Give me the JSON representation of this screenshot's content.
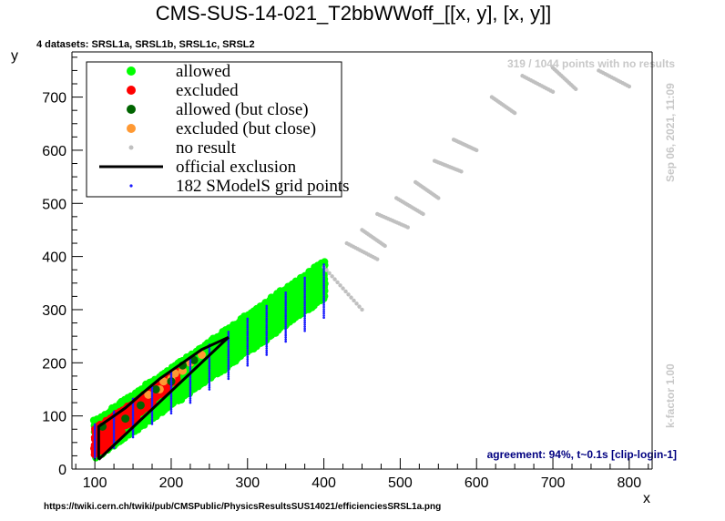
{
  "title": "CMS-SUS-14-021_T2bbWWoff_[[x, y], [x, y]]",
  "datasets_label": "4 datasets: SRSL1a, SRSL1b, SRSL1c, SRSL2",
  "no_results_label": "319 / 1044 points with no results",
  "timestamp_label": "Sep 06, 2021, 11:09",
  "kfactor_label": "k-factor 1.00",
  "agreement_label": "agreement: 94%, t~0.1s [clip-login-1]",
  "url_label": "https://twiki.cern.ch/twiki/pub/CMSPublic/PhysicsResultsSUS14021/efficienciesSRSL1a.png",
  "colors": {
    "allowed": "#00ff00",
    "excluded": "#ff0000",
    "allowed_close": "#006400",
    "excluded_close": "#ff9933",
    "no_result": "#c0c0c0",
    "official": "#000000",
    "grid": "#1a1aff"
  },
  "legend": [
    {
      "key": "allowed",
      "label": "allowed"
    },
    {
      "key": "excluded",
      "label": "excluded"
    },
    {
      "key": "allowed_close",
      "label": "allowed (but close)"
    },
    {
      "key": "excluded_close",
      "label": "excluded (but close)"
    },
    {
      "key": "no_result",
      "label": "no result"
    },
    {
      "key": "official",
      "label": "official exclusion"
    },
    {
      "key": "grid",
      "label": "182 SModelS grid points"
    }
  ],
  "chart_data": {
    "type": "scatter",
    "title": "CMS-SUS-14-021_T2bbWWoff_[[x, y], [x, y]]",
    "xlabel": "x",
    "ylabel": "y",
    "xlim": [
      70,
      830
    ],
    "ylim": [
      0,
      785
    ],
    "xticks": [
      100,
      200,
      300,
      400,
      500,
      600,
      700,
      800
    ],
    "yticks": [
      0,
      100,
      200,
      300,
      400,
      500,
      600,
      700
    ],
    "legend_position": "top-left",
    "grid": false,
    "series": [
      {
        "name": "allowed",
        "key": "allowed",
        "bands": [
          [
            100,
            400,
            10,
            80
          ],
          [
            220,
            400,
            15,
            75
          ]
        ]
      },
      {
        "name": "excluded",
        "key": "excluded",
        "bands": [
          [
            100,
            210,
            25,
            80
          ]
        ]
      },
      {
        "name": "allowed (but close)",
        "key": "allowed_close",
        "points": [
          [
            110,
            80
          ],
          [
            140,
            95
          ],
          [
            160,
            120
          ],
          [
            180,
            150
          ],
          [
            200,
            165
          ],
          [
            215,
            195
          ],
          [
            230,
            205
          ]
        ]
      },
      {
        "name": "excluded (but close)",
        "key": "excluded_close",
        "points": [
          [
            170,
            140
          ],
          [
            190,
            165
          ],
          [
            205,
            180
          ],
          [
            215,
            185
          ],
          [
            225,
            200
          ],
          [
            240,
            215
          ],
          [
            185,
            150
          ],
          [
            200,
            170
          ]
        ]
      },
      {
        "name": "no result",
        "key": "no_result",
        "segments": [
          [
            400,
            380,
            450,
            300
          ],
          [
            430,
            425,
            470,
            395
          ],
          [
            450,
            450,
            480,
            420
          ],
          [
            470,
            480,
            510,
            455
          ],
          [
            495,
            510,
            530,
            480
          ],
          [
            520,
            540,
            550,
            510
          ],
          [
            545,
            580,
            580,
            560
          ],
          [
            570,
            620,
            600,
            600
          ],
          [
            620,
            700,
            650,
            670
          ],
          [
            660,
            740,
            700,
            710
          ],
          [
            700,
            755,
            730,
            715
          ],
          [
            760,
            750,
            800,
            720
          ]
        ]
      },
      {
        "name": "official exclusion",
        "key": "official",
        "line": [
          [
            105,
            18
          ],
          [
            275,
            248
          ],
          [
            240,
            225
          ],
          [
            215,
            200
          ],
          [
            185,
            170
          ],
          [
            160,
            140
          ],
          [
            140,
            115
          ],
          [
            120,
            95
          ],
          [
            105,
            80
          ],
          [
            105,
            18
          ]
        ]
      },
      {
        "name": "182 SModelS grid points",
        "key": "grid",
        "columns": [
          [
            100,
            20,
            85
          ],
          [
            125,
            40,
            110
          ],
          [
            150,
            60,
            135
          ],
          [
            175,
            85,
            160
          ],
          [
            200,
            105,
            185
          ],
          [
            225,
            125,
            210
          ],
          [
            250,
            150,
            235
          ],
          [
            275,
            170,
            260
          ],
          [
            300,
            195,
            285
          ],
          [
            325,
            215,
            310
          ],
          [
            350,
            240,
            335
          ],
          [
            375,
            260,
            360
          ],
          [
            400,
            285,
            385
          ]
        ]
      }
    ]
  }
}
